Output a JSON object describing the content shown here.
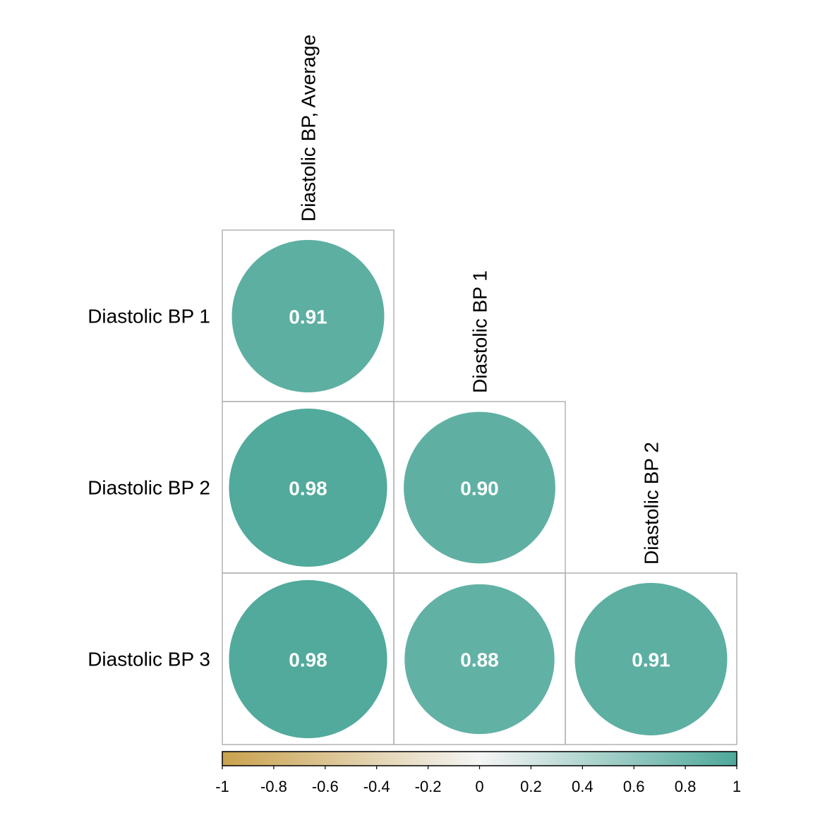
{
  "chart_data": {
    "type": "heatmap",
    "subtype": "correlation-circle-lower-triangle",
    "title": "",
    "row_labels": [
      "Diastolic BP 1",
      "Diastolic BP 2",
      "Diastolic BP 3"
    ],
    "col_labels": [
      "Diastolic BP, Average",
      "Diastolic BP 1",
      "Diastolic BP 2"
    ],
    "cells": [
      {
        "row": 0,
        "col": 0,
        "value": 0.91,
        "label": "0.91"
      },
      {
        "row": 1,
        "col": 0,
        "value": 0.98,
        "label": "0.98"
      },
      {
        "row": 1,
        "col": 1,
        "value": 0.9,
        "label": "0.90"
      },
      {
        "row": 2,
        "col": 0,
        "value": 0.98,
        "label": "0.98"
      },
      {
        "row": 2,
        "col": 1,
        "value": 0.88,
        "label": "0.88"
      },
      {
        "row": 2,
        "col": 2,
        "value": 0.91,
        "label": "0.91"
      }
    ],
    "colorbar": {
      "range": [
        -1,
        1
      ],
      "ticks": [
        "-1",
        "-0.8",
        "-0.6",
        "-0.4",
        "-0.2",
        "0",
        "0.2",
        "0.4",
        "0.6",
        "0.8",
        "1"
      ],
      "tick_values": [
        -1,
        -0.8,
        -0.6,
        -0.4,
        -0.2,
        0,
        0.2,
        0.4,
        0.6,
        0.8,
        1
      ],
      "low_color": "#C9A24E",
      "mid_color": "#F5F5F5",
      "high_color": "#4EA89A",
      "placement": "bottom"
    }
  }
}
